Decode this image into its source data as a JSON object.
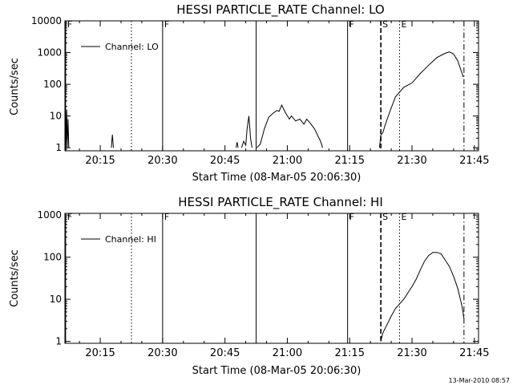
{
  "footer_timestamp": "13-Mar-2010 08:57",
  "chart_data": [
    {
      "type": "line",
      "title": "HESSI PARTICLE_RATE Channel: LO",
      "xlabel": "Start Time (08-Mar-05 20:06:30)",
      "ylabel": "Counts/sec",
      "y_scale": "log",
      "xlim": [
        "20:06:30",
        "21:46:00"
      ],
      "ylim": [
        0.8,
        10000
      ],
      "x_ticks": [
        "20:15",
        "20:30",
        "20:45",
        "21:00",
        "21:15",
        "21:30",
        "21:45"
      ],
      "y_ticks": [
        "1",
        "10",
        "100",
        "1000",
        "10000"
      ],
      "grid": false,
      "legend": {
        "position": "top-left",
        "entries": [
          "Channel: LO"
        ]
      },
      "markers": [
        {
          "label": "F",
          "time": "20:06:40",
          "style": "solid"
        },
        {
          "label": "",
          "time": "20:22:30",
          "style": "dotted"
        },
        {
          "label": "F",
          "time": "20:30:00",
          "style": "solid"
        },
        {
          "label": "",
          "time": "20:52:30",
          "style": "solid"
        },
        {
          "label": "F",
          "time": "21:14:30",
          "style": "solid"
        },
        {
          "label": "S",
          "time": "21:22:30",
          "style": "dashed"
        },
        {
          "label": "E",
          "time": "21:27:00",
          "style": "dotted"
        },
        {
          "label": "",
          "time": "21:42:30",
          "style": "dashdot"
        }
      ],
      "series": [
        {
          "name": "Channel: LO",
          "segments": [
            [
              [
                "20:06:35",
                12
              ],
              [
                "20:06:45",
                1
              ],
              [
                "20:06:55",
                16
              ],
              [
                "20:07:05",
                1
              ],
              [
                "20:07:15",
                8
              ],
              [
                "20:07:25",
                1
              ]
            ],
            [
              [
                "20:17:40",
                1
              ],
              [
                "20:17:55",
                2.6
              ],
              [
                "20:18:10",
                1
              ]
            ],
            [
              [
                "20:47:40",
                1
              ],
              [
                "20:47:55",
                1.5
              ],
              [
                "20:48:10",
                1
              ]
            ],
            [
              [
                "20:49:00",
                1
              ],
              [
                "20:49:30",
                1.6
              ],
              [
                "20:50:00",
                1.2
              ],
              [
                "20:50:20",
                4
              ],
              [
                "20:50:45",
                10
              ],
              [
                "20:51:10",
                2
              ],
              [
                "20:51:30",
                1
              ]
            ],
            [
              [
                "20:52:40",
                1
              ],
              [
                "20:53:30",
                1.3
              ],
              [
                "20:54:30",
                4
              ],
              [
                "20:55:30",
                9
              ],
              [
                "20:56:30",
                12
              ],
              [
                "20:57:30",
                15
              ],
              [
                "20:58:00",
                14
              ],
              [
                "20:58:40",
                22
              ],
              [
                "20:59:30",
                13
              ],
              [
                "21:00:30",
                8
              ],
              [
                "21:01:00",
                10
              ],
              [
                "21:02:00",
                7
              ],
              [
                "21:03:00",
                8
              ],
              [
                "21:04:00",
                5.5
              ],
              [
                "21:04:40",
                8
              ],
              [
                "21:05:30",
                6
              ],
              [
                "21:06:30",
                4
              ],
              [
                "21:07:00",
                3
              ],
              [
                "21:08:00",
                1.6
              ],
              [
                "21:08:30",
                1
              ]
            ],
            [
              [
                "21:22:10",
                1
              ],
              [
                "21:22:30",
                2.5
              ],
              [
                "21:23:00",
                3
              ],
              [
                "21:23:30",
                5
              ],
              [
                "21:24:30",
                12
              ],
              [
                "21:26:00",
                40
              ],
              [
                "21:28:00",
                80
              ],
              [
                "21:30:00",
                110
              ],
              [
                "21:32:00",
                220
              ],
              [
                "21:34:00",
                400
              ],
              [
                "21:36:00",
                700
              ],
              [
                "21:38:00",
                950
              ],
              [
                "21:39:00",
                1050
              ],
              [
                "21:40:00",
                900
              ],
              [
                "21:41:00",
                550
              ],
              [
                "21:42:20",
                170
              ]
            ]
          ]
        }
      ]
    },
    {
      "type": "line",
      "title": "HESSI PARTICLE_RATE Channel: HI",
      "xlabel": "Start Time (08-Mar-05 20:06:30)",
      "ylabel": "Counts/sec",
      "y_scale": "log",
      "xlim": [
        "20:06:30",
        "21:46:00"
      ],
      "ylim": [
        0.9,
        1100
      ],
      "x_ticks": [
        "20:15",
        "20:30",
        "20:45",
        "21:00",
        "21:15",
        "21:30",
        "21:45"
      ],
      "y_ticks": [
        "1",
        "10",
        "100",
        "1000"
      ],
      "grid": false,
      "legend": {
        "position": "top-left",
        "entries": [
          "Channel: HI"
        ]
      },
      "markers": [
        {
          "label": "F",
          "time": "20:06:40",
          "style": "solid"
        },
        {
          "label": "",
          "time": "20:22:30",
          "style": "dotted"
        },
        {
          "label": "F",
          "time": "20:30:00",
          "style": "solid"
        },
        {
          "label": "",
          "time": "20:52:30",
          "style": "solid"
        },
        {
          "label": "F",
          "time": "21:14:30",
          "style": "solid"
        },
        {
          "label": "S",
          "time": "21:22:30",
          "style": "dashed"
        },
        {
          "label": "E",
          "time": "21:27:00",
          "style": "dotted"
        },
        {
          "label": "",
          "time": "21:42:30",
          "style": "dashdot"
        }
      ],
      "series": [
        {
          "name": "Channel: HI",
          "segments": [
            [
              [
                "21:22:30",
                1
              ],
              [
                "21:23:00",
                1.6
              ],
              [
                "21:24:00",
                2.5
              ],
              [
                "21:25:00",
                4
              ],
              [
                "21:26:00",
                6
              ],
              [
                "21:28:00",
                10
              ],
              [
                "21:30:00",
                20
              ],
              [
                "21:31:00",
                30
              ],
              [
                "21:32:00",
                50
              ],
              [
                "21:33:00",
                80
              ],
              [
                "21:34:00",
                110
              ],
              [
                "21:35:00",
                130
              ],
              [
                "21:36:00",
                130
              ],
              [
                "21:37:00",
                120
              ],
              [
                "21:38:00",
                85
              ],
              [
                "21:39:00",
                60
              ],
              [
                "21:40:00",
                35
              ],
              [
                "21:41:00",
                18
              ],
              [
                "21:42:00",
                7
              ],
              [
                "21:42:30",
                3.5
              ]
            ]
          ]
        }
      ]
    }
  ]
}
